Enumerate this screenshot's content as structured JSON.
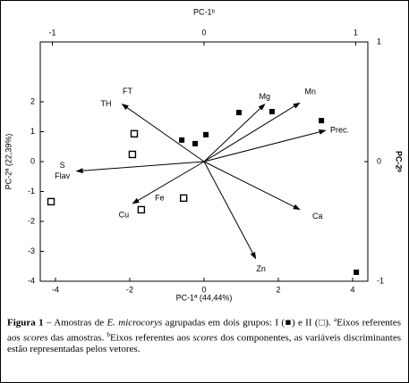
{
  "chart_data": {
    "type": "biplot",
    "x_label": "PC-1ª (44,44%)",
    "x2_label": "PC-1ᵇ",
    "y_label": "PC-2ª (22,39%)",
    "y2_label": "PC-2ᵇ",
    "xlim": [
      -4.41,
      4.41
    ],
    "xticks": [
      -4,
      -2,
      0,
      2,
      4
    ],
    "ylim": [
      -4,
      4
    ],
    "yticks": [
      -4,
      -3,
      -2,
      -1,
      0,
      1,
      2
    ],
    "x2lim": [
      -1.08,
      1.08
    ],
    "x2ticks": [
      -1,
      0,
      1
    ],
    "y2lim": [
      -1,
      1
    ],
    "y2ticks": [
      -1,
      0,
      1
    ],
    "color": "#000000",
    "series": [
      {
        "marker": "filled",
        "x": [
          -0.6,
          -0.24,
          0.05,
          0.94,
          1.83,
          3.16,
          4.1
        ],
        "y": [
          0.72,
          0.6,
          0.9,
          1.64,
          1.67,
          1.37,
          -3.7
        ]
      },
      {
        "marker": "open",
        "x": [
          -1.88,
          -1.93,
          -4.12,
          -1.69,
          -0.55
        ],
        "y": [
          0.93,
          0.24,
          -1.34,
          -1.61,
          -1.22
        ]
      }
    ],
    "vectors": [
      {
        "labels": [
          "FT",
          "TH"
        ],
        "x": -0.54,
        "y": 0.48
      },
      {
        "labels": [
          "Mg"
        ],
        "x": 0.4,
        "y": 0.48
      },
      {
        "labels": [
          "Mn"
        ],
        "x": 0.63,
        "y": 0.49
      },
      {
        "labels": [
          "Prec."
        ],
        "x": 0.8,
        "y": 0.26
      },
      {
        "labels": [
          "S",
          "Flav"
        ],
        "x": -0.84,
        "y": -0.08
      },
      {
        "labels": [
          "Fe",
          "Cu"
        ],
        "x": -0.47,
        "y": -0.35
      },
      {
        "labels": [
          "Ca"
        ],
        "x": 0.63,
        "y": -0.4
      },
      {
        "labels": [
          "Zn"
        ],
        "x": 0.34,
        "y": -0.81
      }
    ],
    "caption": [
      "Figura 1",
      " – Amostras de ",
      "E. microcorys",
      "  agrupadas em dois grupos: I (",
      "■",
      ") e II (",
      "□",
      "). ",
      "a",
      "Eixos referentes aos ",
      "scores",
      " das amostras. ",
      "b",
      "Eixos referentes aos ",
      "scores",
      " dos componentes, as variáveis discriminantes estão representadas pelos vetores."
    ]
  }
}
